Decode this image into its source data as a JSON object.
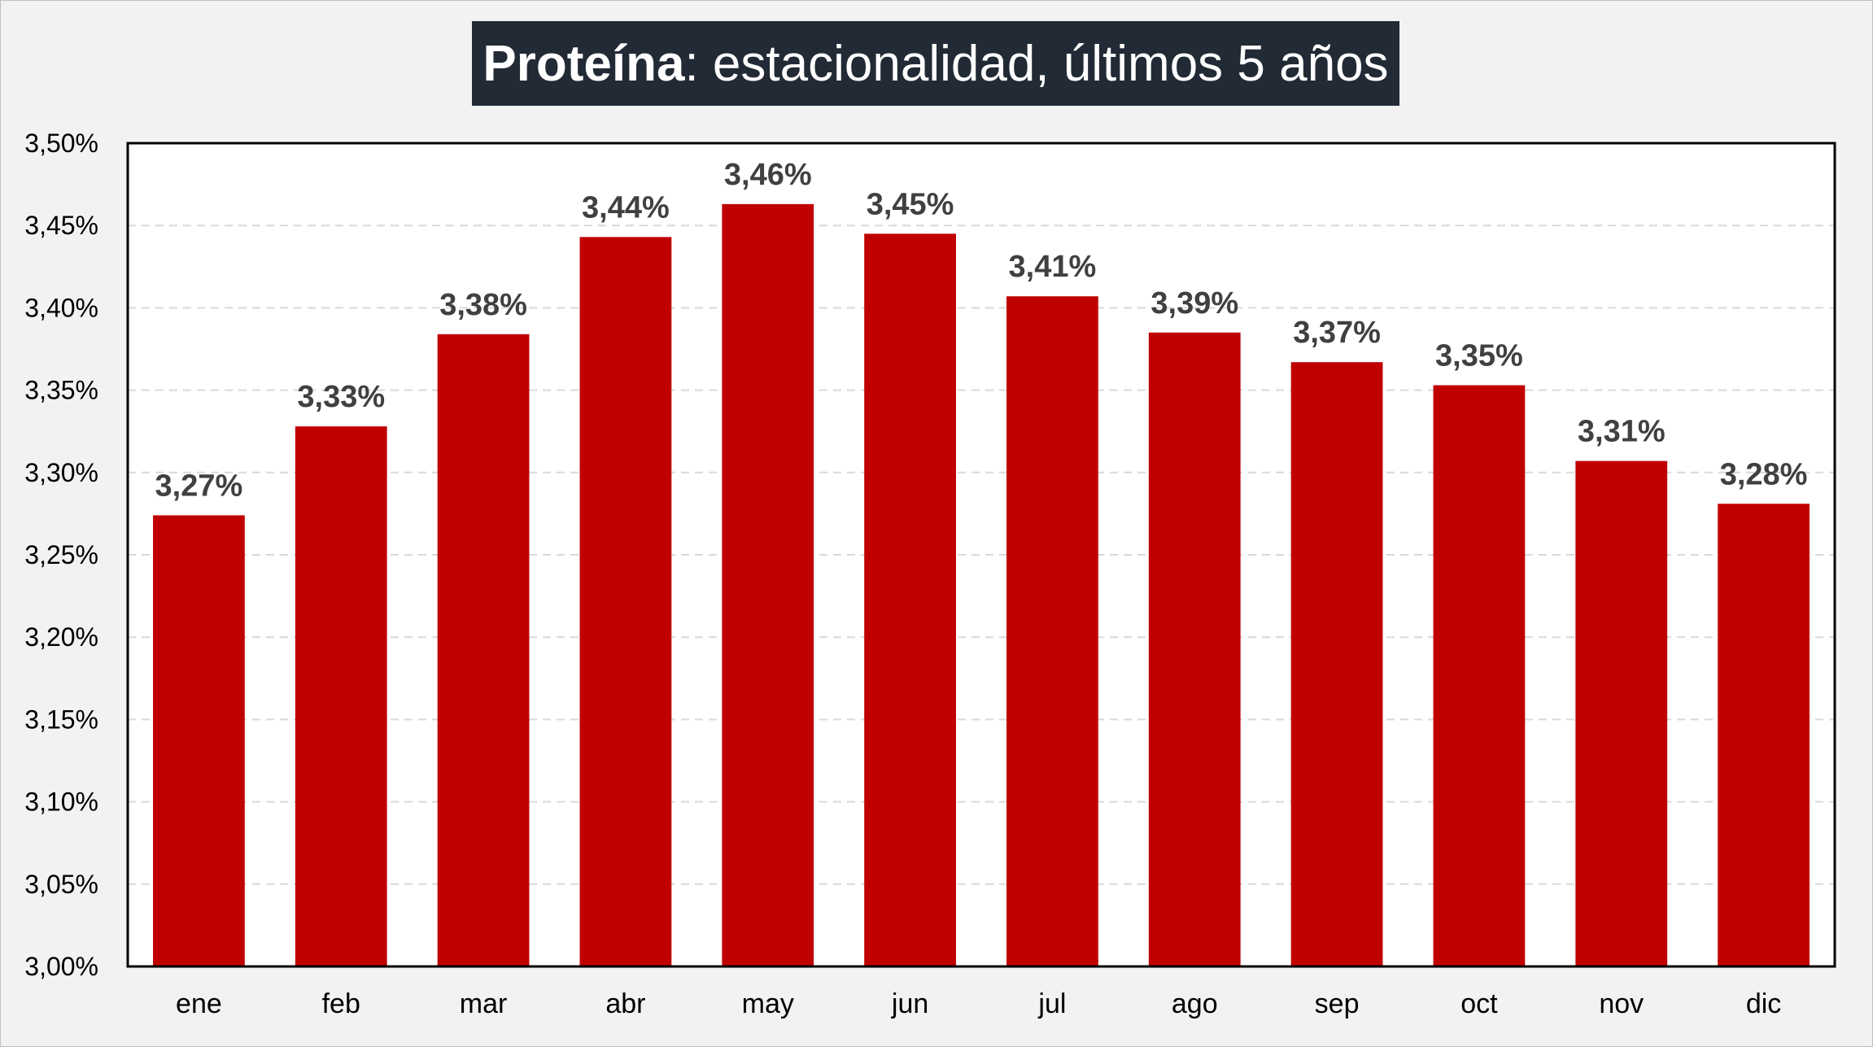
{
  "chart_data": {
    "type": "bar",
    "title_bold": "Proteína",
    "title_rest": ": estacionalidad, últimos 5 años",
    "categories": [
      "ene",
      "feb",
      "mar",
      "abr",
      "may",
      "jun",
      "jul",
      "ago",
      "sep",
      "oct",
      "nov",
      "dic"
    ],
    "values": [
      3.274,
      3.328,
      3.384,
      3.443,
      3.463,
      3.445,
      3.407,
      3.385,
      3.367,
      3.353,
      3.307,
      3.281
    ],
    "data_labels": [
      "3,27%",
      "3,33%",
      "3,38%",
      "3,44%",
      "3,46%",
      "3,45%",
      "3,41%",
      "3,39%",
      "3,37%",
      "3,35%",
      "3,31%",
      "3,28%"
    ],
    "y_ticks": [
      3.0,
      3.05,
      3.1,
      3.15,
      3.2,
      3.25,
      3.3,
      3.35,
      3.4,
      3.45,
      3.5
    ],
    "y_tick_labels": [
      "3,00%",
      "3,05%",
      "3,10%",
      "3,15%",
      "3,20%",
      "3,25%",
      "3,30%",
      "3,35%",
      "3,40%",
      "3,45%",
      "3,50%"
    ],
    "ylim": [
      3.0,
      3.5
    ],
    "bar_color": "#c00000",
    "grid": "dashed horizontal"
  }
}
